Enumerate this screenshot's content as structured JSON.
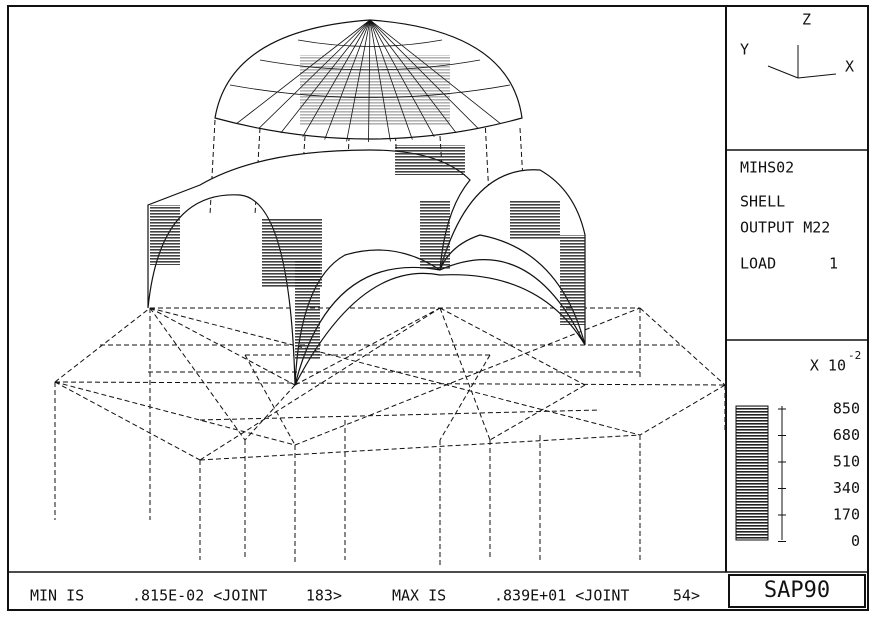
{
  "axes_icon": {
    "z": "Z",
    "y": "Y",
    "x": "X"
  },
  "info": {
    "model": "MIHS02",
    "element": "SHELL",
    "output": "OUTPUT M22",
    "load_label": "LOAD",
    "load_value": "1"
  },
  "legend": {
    "multiplier": "X 10",
    "exponent": "-2",
    "labels": [
      "850",
      "680",
      "510",
      "340",
      "170",
      "0"
    ]
  },
  "footer": {
    "min_label": "MIN IS",
    "min_value": ".815E-02 <JOINT",
    "min_joint": "183>",
    "max_label": "MAX IS",
    "max_value": ".839E+01 <JOINT",
    "max_joint": "54>"
  },
  "program": "SAP90"
}
